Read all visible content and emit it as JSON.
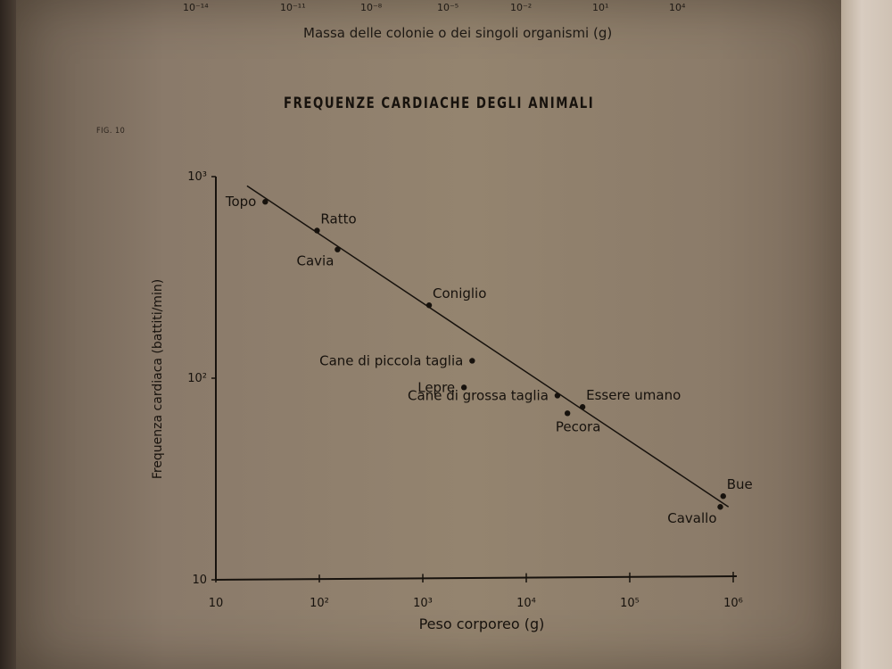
{
  "top_section": {
    "tick_labels": [
      "10⁻¹⁴",
      "10⁻¹¹",
      "10⁻⁸",
      "10⁻⁵",
      "10⁻²",
      "10¹",
      "10⁴"
    ],
    "axis_title": "Massa delle colonie o dei singoli organismi (g)"
  },
  "figure_label": "FIG. 10",
  "chart_data": {
    "type": "scatter",
    "title": "FREQUENZE CARDIACHE DEGLI ANIMALI",
    "xlabel": "Peso corporeo (g)",
    "ylabel": "Frequenza cardiaca (battiti/min)",
    "x_scale": "log",
    "y_scale": "log",
    "xlim": [
      10,
      1000000
    ],
    "ylim": [
      10,
      1000
    ],
    "x_ticks": [
      {
        "value": 10,
        "label": "10"
      },
      {
        "value": 100,
        "label": "10²"
      },
      {
        "value": 1000,
        "label": "10³"
      },
      {
        "value": 10000,
        "label": "10⁴"
      },
      {
        "value": 100000,
        "label": "10⁵"
      },
      {
        "value": 1000000,
        "label": "10⁶"
      }
    ],
    "y_ticks": [
      {
        "value": 10,
        "label": "10"
      },
      {
        "value": 100,
        "label": "10²"
      },
      {
        "value": 1000,
        "label": "10³"
      }
    ],
    "points": [
      {
        "label": "Topo",
        "x": 30,
        "y": 750,
        "label_pos": "left"
      },
      {
        "label": "Ratto",
        "x": 95,
        "y": 540,
        "label_pos": "right-above"
      },
      {
        "label": "Cavia",
        "x": 150,
        "y": 435,
        "label_pos": "left-below"
      },
      {
        "label": "Coniglio",
        "x": 1150,
        "y": 230,
        "label_pos": "right-above"
      },
      {
        "label": "Cane di piccola taglia",
        "x": 3000,
        "y": 122,
        "label_pos": "left"
      },
      {
        "label": "Lepre",
        "x": 2500,
        "y": 90,
        "label_pos": "left"
      },
      {
        "label": "Cane di grossa taglia",
        "x": 20000,
        "y": 82,
        "label_pos": "left"
      },
      {
        "label": "Pecora",
        "x": 25000,
        "y": 67,
        "label_pos": "below"
      },
      {
        "label": "Essere umano",
        "x": 35000,
        "y": 72,
        "label_pos": "right-above"
      },
      {
        "label": "Bue",
        "x": 800000,
        "y": 26,
        "label_pos": "right-above"
      },
      {
        "label": "Cavallo",
        "x": 750000,
        "y": 23,
        "label_pos": "left-below"
      }
    ],
    "trendline": [
      [
        20,
        900
      ],
      [
        900000,
        23
      ]
    ]
  }
}
